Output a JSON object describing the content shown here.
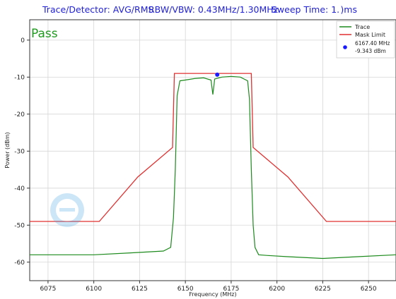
{
  "header": {
    "detector": "Trace/Detector: AVG/RMS",
    "rbw_vbw": "RBW/VBW: 0.43MHz/1.30MHz",
    "sweep": "Sweep Time: 1. )ms"
  },
  "status": "Pass",
  "colors": {
    "trace": "#1c8a1c",
    "mask": "#e03030",
    "marker": "#1a1aff",
    "status": "#1e9a1e"
  },
  "chart_data": {
    "type": "line",
    "xlabel": "Frequency (MHz)",
    "ylabel": "Power (dBm)",
    "xlim": [
      6065,
      6265
    ],
    "ylim": [
      -65,
      5.5
    ],
    "x_ticks": [
      6075,
      6100,
      6125,
      6150,
      6175,
      6200,
      6225,
      6250
    ],
    "y_ticks": [
      0,
      -10,
      -20,
      -30,
      -40,
      -50,
      -60
    ],
    "grid": true,
    "legend_position": "top-right",
    "legend": [
      "Trace",
      "Mask Limit"
    ],
    "series": [
      {
        "name": "Mask Limit",
        "x": [
          6065,
          6103,
          6124,
          6143,
          6144,
          6186,
          6187,
          6206,
          6227,
          6265
        ],
        "y": [
          -49,
          -49,
          -37,
          -29,
          -9,
          -9,
          -29,
          -37,
          -49,
          -49
        ]
      },
      {
        "name": "Trace",
        "x": [
          6065,
          6080,
          6100,
          6120,
          6138,
          6142,
          6143.5,
          6144.5,
          6145.5,
          6147,
          6150,
          6155,
          6160,
          6164,
          6165,
          6166,
          6170,
          6175,
          6180,
          6184,
          6185,
          6186,
          6187,
          6188,
          6190,
          6195,
          6205,
          6225,
          6245,
          6265
        ],
        "y": [
          -58,
          -58,
          -58,
          -57.5,
          -57,
          -56,
          -48,
          -35,
          -15,
          -11,
          -10.8,
          -10.4,
          -10.2,
          -10.8,
          -14.7,
          -10.5,
          -10,
          -9.8,
          -10,
          -11,
          -16,
          -35,
          -50,
          -56,
          -58,
          -58.2,
          -58.5,
          -59,
          -58.5,
          -58
        ]
      }
    ],
    "marker": {
      "x": 6167.4,
      "y": -9.343,
      "label_freq": "6167.40 MHz",
      "label_power": "-9.343 dBm"
    }
  }
}
